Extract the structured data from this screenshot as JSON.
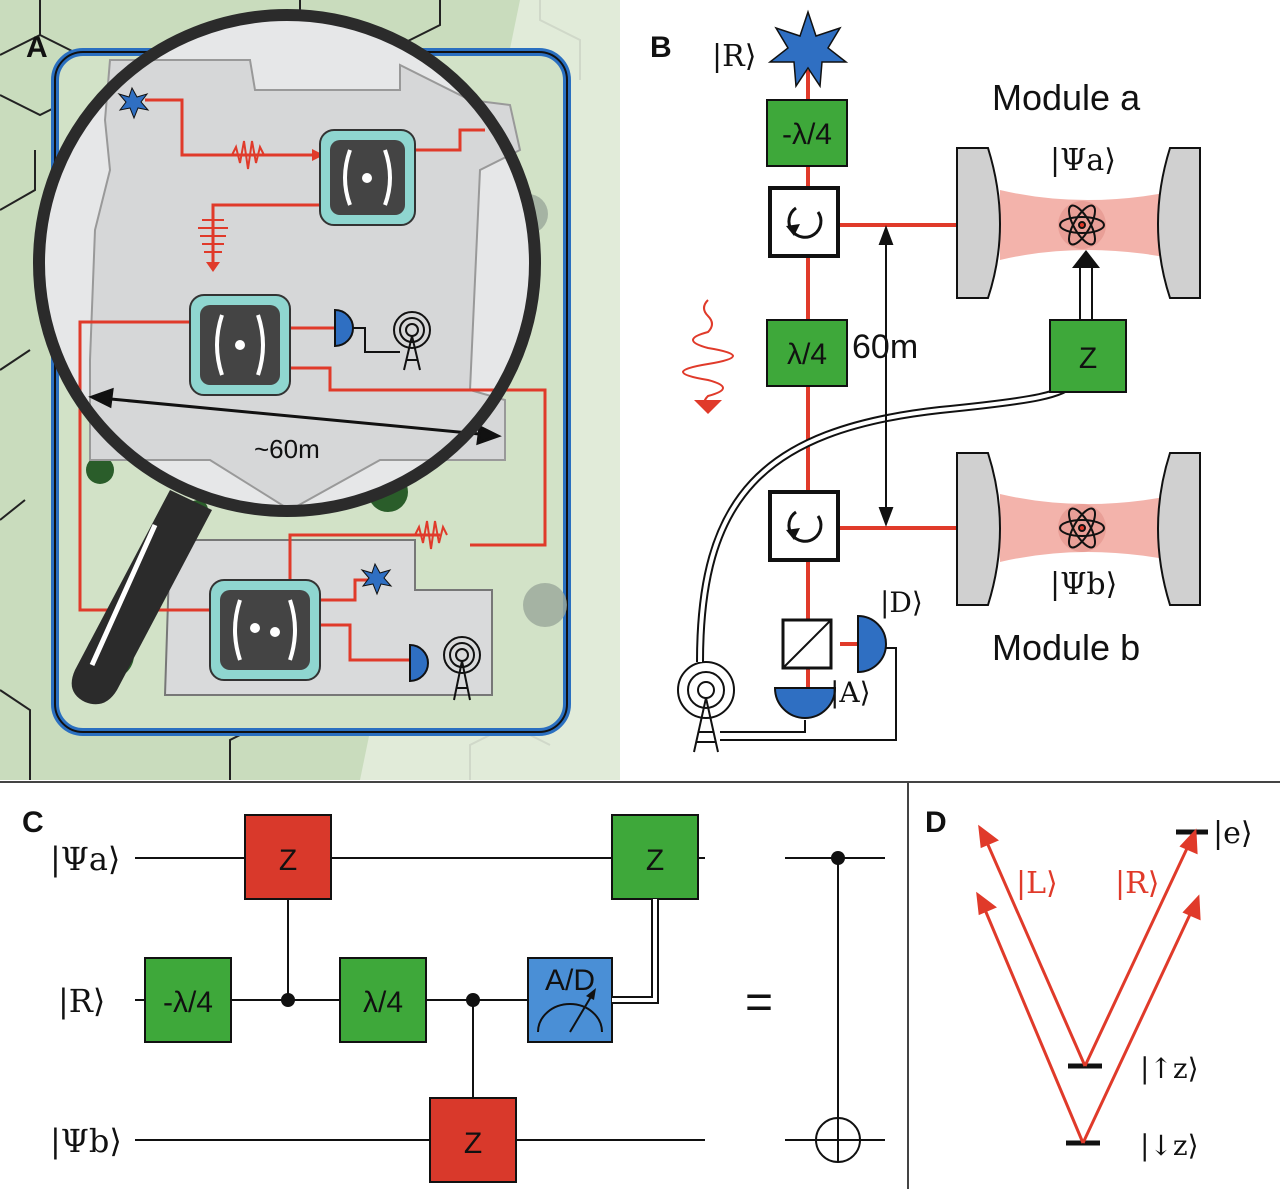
{
  "panels": {
    "a": {
      "letter": "A",
      "distance_label": "~60m"
    },
    "b": {
      "letter": "B",
      "ket_R": "|R⟩",
      "ket_Psi_a": "|Ψa⟩",
      "ket_Psi_b": "|Ψb⟩",
      "ket_D": "|D⟩",
      "ket_A": "|A⟩",
      "module_a": "Module a",
      "module_b": "Module b",
      "gate_neg_qwp": "-λ/4",
      "gate_qwp": "λ/4",
      "gate_z": "Z",
      "distance_label": "60m"
    },
    "c": {
      "letter": "C",
      "wire_a": "|Ψa⟩",
      "wire_r": "|R⟩",
      "wire_b": "|Ψb⟩",
      "gate_neg_qwp": "-λ/4",
      "gate_qwp": "λ/4",
      "gate_z": "Z",
      "gate_measure": "A/D",
      "equals": "="
    },
    "d": {
      "letter": "D",
      "ket_e": "|e⟩",
      "ket_L": "|L⟩",
      "ket_R": "|R⟩",
      "ket_up": "|↑z⟩",
      "ket_down": "|↓z⟩"
    }
  },
  "colors": {
    "laser_red": "#e03a2a",
    "gate_green": "#3ea83a",
    "gate_red": "#d9392b",
    "gate_blue": "#4a8fd6",
    "star_blue": "#2f6fc2",
    "map_green": "#cfe0c2",
    "building_gray": "#d9dadb",
    "chip_teal": "#8fd6d0"
  }
}
